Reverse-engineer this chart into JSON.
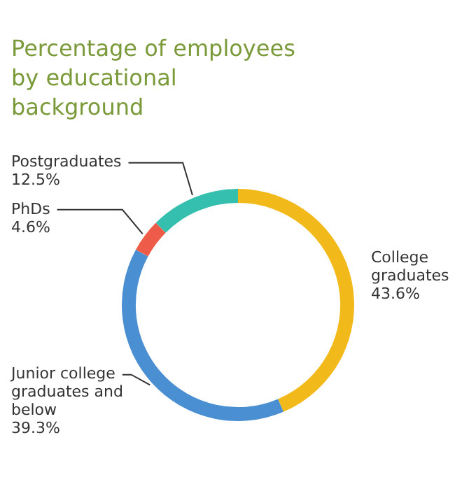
{
  "chart_data": {
    "type": "donut",
    "title": "Percentage of employees by educational background",
    "categories": [
      "College graduates",
      "Junior college graduates and below",
      "PhDs",
      "Postgraduates"
    ],
    "values": [
      43.6,
      39.3,
      4.6,
      12.5
    ],
    "colors": [
      "#f2b91a",
      "#4a8fd2",
      "#ee5b48",
      "#35bfae"
    ],
    "value_labels": [
      "43.6%",
      "39.3%",
      "4.6%",
      "12.5%"
    ],
    "legend": false
  }
}
